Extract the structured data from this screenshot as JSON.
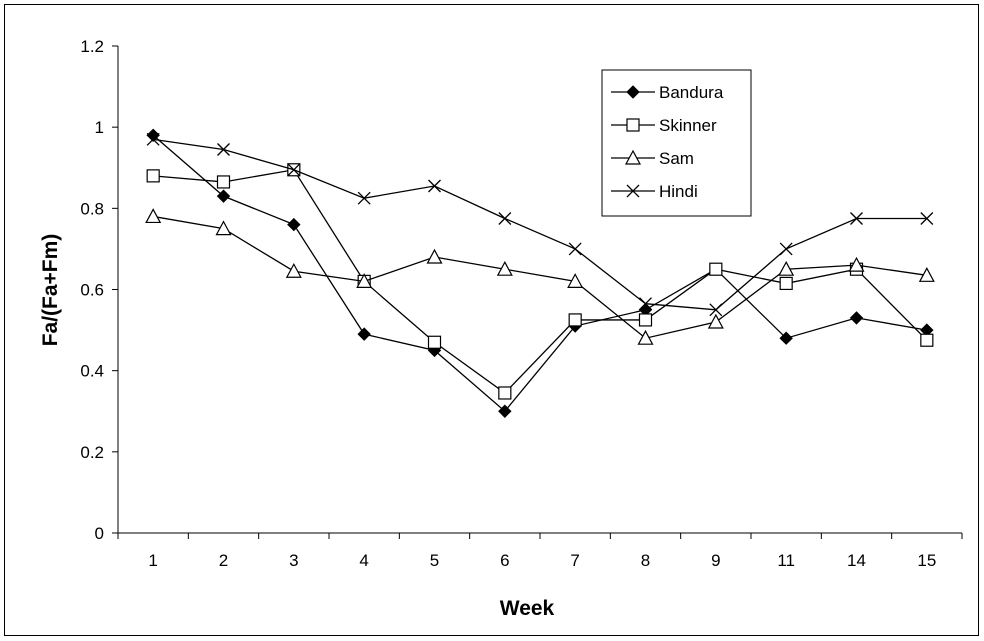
{
  "chart_data": {
    "type": "line",
    "title": "",
    "xlabel": "Week",
    "ylabel": "Fa/(Fa+Fm)",
    "categories": [
      "1",
      "2",
      "3",
      "4",
      "5",
      "6",
      "7",
      "8",
      "9",
      "11",
      "14",
      "15"
    ],
    "ylim": [
      0,
      1.2
    ],
    "yticks": [
      "0",
      "0.2",
      "0.4",
      "0.6",
      "0.8",
      "1",
      "1.2"
    ],
    "grid": false,
    "legend_position": "top-right",
    "series": [
      {
        "name": "Bandura",
        "marker": "filled-diamond",
        "color": "#000000",
        "values": [
          0.98,
          0.83,
          0.76,
          0.49,
          0.45,
          0.3,
          0.51,
          0.55,
          0.65,
          0.48,
          0.53,
          0.5
        ]
      },
      {
        "name": "Skinner",
        "marker": "open-square",
        "color": "#000000",
        "values": [
          0.88,
          0.865,
          0.895,
          0.62,
          0.47,
          0.345,
          0.525,
          0.525,
          0.65,
          0.615,
          0.65,
          0.475
        ]
      },
      {
        "name": "Sam",
        "marker": "open-triangle",
        "color": "#000000",
        "values": [
          0.78,
          0.75,
          0.645,
          0.62,
          0.68,
          0.65,
          0.62,
          0.48,
          0.52,
          0.65,
          0.66,
          0.635
        ]
      },
      {
        "name": "Hindi",
        "marker": "x",
        "color": "#000000",
        "values": [
          0.97,
          0.945,
          0.895,
          0.825,
          0.855,
          0.775,
          0.7,
          0.565,
          0.55,
          0.7,
          0.775,
          0.775
        ]
      }
    ]
  }
}
